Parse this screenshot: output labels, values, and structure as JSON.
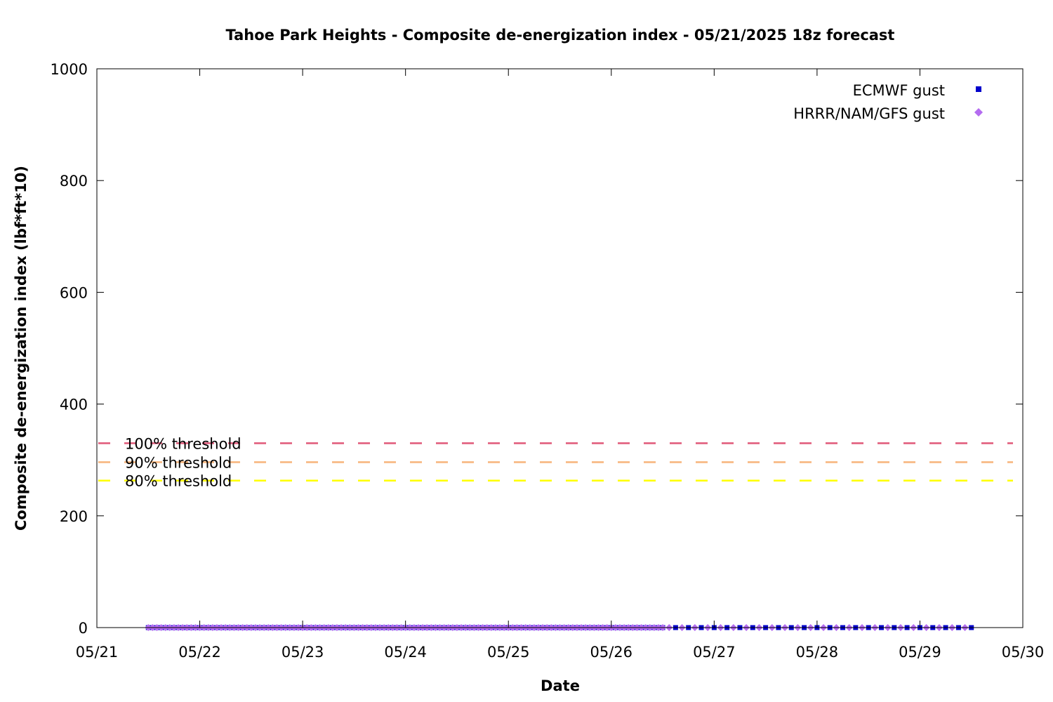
{
  "chart_data": {
    "type": "scatter",
    "title": "Tahoe Park Heights - Composite de-energization index - 05/21/2025 18z forecast",
    "xlabel": "Date",
    "ylabel": "Composite de-energization index (lbf*ft*10)",
    "x_ticks": [
      "05/21",
      "05/22",
      "05/23",
      "05/24",
      "05/25",
      "05/26",
      "05/27",
      "05/28",
      "05/29",
      "05/30"
    ],
    "y_ticks": [
      "0",
      "200",
      "400",
      "600",
      "800",
      "1000"
    ],
    "ylim": [
      0,
      1000
    ],
    "xlim": [
      "05/21 00z",
      "05/30 00z"
    ],
    "grid": false,
    "legend_position": "top-right",
    "series": [
      {
        "name": "ECMWF gust",
        "marker": "square",
        "color": "#0000cc",
        "x_start": "05/21 12z",
        "x_end": "05/29 12z",
        "note_spacing": "dense through 05/26, then every 3h",
        "values_constant": 0
      },
      {
        "name": "HRRR/NAM/GFS gust",
        "marker": "diamond",
        "color": "#b46cf0",
        "x_start": "05/21 12z",
        "x_end": "05/29 12z",
        "values_constant": 0
      }
    ],
    "thresholds": [
      {
        "label": "100% threshold",
        "value": 330,
        "color": "#e05878"
      },
      {
        "label": "90% threshold",
        "value": 296,
        "color": "#f8b47a"
      },
      {
        "label": "80% threshold",
        "value": 263,
        "color": "#ffff00"
      }
    ]
  }
}
